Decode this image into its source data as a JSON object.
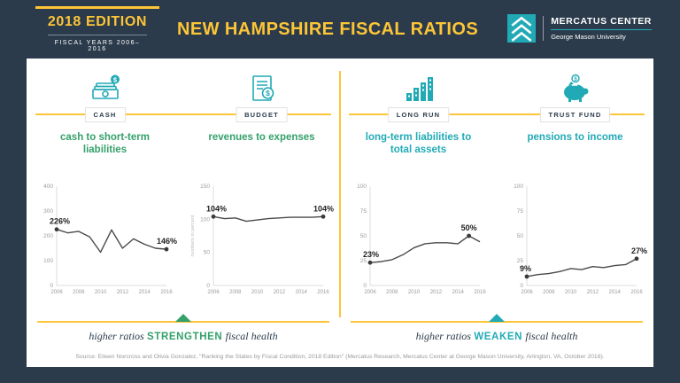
{
  "colors": {
    "navy": "#2B3B4B",
    "yellow": "#FDC537",
    "green": "#34A06A",
    "teal": "#21AAB5",
    "chart_line": "#4A4A4A"
  },
  "header": {
    "edition": "2018 EDITION",
    "fiscal_years": "FISCAL YEARS 2006–2016",
    "title": "NEW HAMPSHIRE FISCAL RATIOS",
    "logo_title": "MERCATUS CENTER",
    "logo_subtitle": "George Mason University"
  },
  "groups": [
    {
      "direction_pre": "higher ratios",
      "direction_word": "STRENGTHEN",
      "direction_post": "fiscal health"
    },
    {
      "direction_pre": "higher ratios",
      "direction_word": "WEAKEN",
      "direction_post": "fiscal health"
    }
  ],
  "panels": [
    {
      "category": "CASH",
      "icon": "cash-stack-icon",
      "title": "cash to short-term liabilities",
      "chart_data": {
        "type": "line",
        "title": "cash to short-term liabilities",
        "x": [
          2006,
          2007,
          2008,
          2009,
          2010,
          2011,
          2012,
          2013,
          2014,
          2015,
          2016
        ],
        "values": [
          226,
          212,
          218,
          196,
          134,
          224,
          150,
          188,
          166,
          150,
          146
        ],
        "ylim": [
          0,
          400
        ],
        "yticks": [
          0,
          100,
          200,
          300,
          400
        ],
        "xticks": [
          2006,
          2008,
          2010,
          2012,
          2014,
          2016
        ],
        "annotations": [
          {
            "index": 0,
            "label": "226%"
          },
          {
            "index": 10,
            "label": "146%"
          }
        ]
      }
    },
    {
      "category": "BUDGET",
      "icon": "budget-document-icon",
      "title": "revenues to expenses",
      "chart_data": {
        "type": "line",
        "title": "revenues to expenses",
        "ylabel": "numbers in percent",
        "x": [
          2006,
          2007,
          2008,
          2009,
          2010,
          2011,
          2012,
          2013,
          2014,
          2015,
          2016
        ],
        "values": [
          104,
          101,
          102,
          97,
          99,
          101,
          102,
          103,
          103,
          103,
          104
        ],
        "ylim": [
          0,
          150
        ],
        "yticks": [
          0,
          50,
          100,
          150
        ],
        "xticks": [
          2006,
          2008,
          2010,
          2012,
          2014,
          2016
        ],
        "annotations": [
          {
            "index": 0,
            "label": "104%"
          },
          {
            "index": 10,
            "label": "104%"
          }
        ]
      }
    },
    {
      "category": "LONG RUN",
      "icon": "buildings-bars-icon",
      "title": "long-term liabilities to total assets",
      "chart_data": {
        "type": "line",
        "title": "long-term liabilities to total assets",
        "x": [
          2006,
          2007,
          2008,
          2009,
          2010,
          2011,
          2012,
          2013,
          2014,
          2015,
          2016
        ],
        "values": [
          23,
          24,
          26,
          31,
          38,
          42,
          43,
          43,
          42,
          50,
          44
        ],
        "ylim": [
          0,
          100
        ],
        "yticks": [
          0,
          25,
          50,
          75,
          100
        ],
        "xticks": [
          2006,
          2008,
          2010,
          2012,
          2014,
          2016
        ],
        "annotations": [
          {
            "index": 0,
            "label": "23%"
          },
          {
            "index": 9,
            "label": "50%"
          }
        ]
      }
    },
    {
      "category": "TRUST FUND",
      "icon": "piggy-bank-icon",
      "title": "pensions to income",
      "chart_data": {
        "type": "line",
        "title": "pensions to income",
        "x": [
          2006,
          2007,
          2008,
          2009,
          2010,
          2011,
          2012,
          2013,
          2014,
          2015,
          2016
        ],
        "values": [
          9,
          11,
          12,
          14,
          17,
          16,
          19,
          18,
          20,
          21,
          27
        ],
        "ylim": [
          0,
          100
        ],
        "yticks": [
          0,
          25,
          50,
          75,
          100
        ],
        "xticks": [
          2006,
          2008,
          2010,
          2012,
          2014,
          2016
        ],
        "annotations": [
          {
            "index": 0,
            "label": "9%"
          },
          {
            "index": 10,
            "label": "27%"
          }
        ]
      }
    }
  ],
  "source": "Source: Eileen Norcross and Olivia Gonzalez, \"Ranking the States by Fiscal Condition, 2018 Edition\" (Mercatus Research, Mercatus Center at George Mason University, Arlington, VA, October 2018)."
}
